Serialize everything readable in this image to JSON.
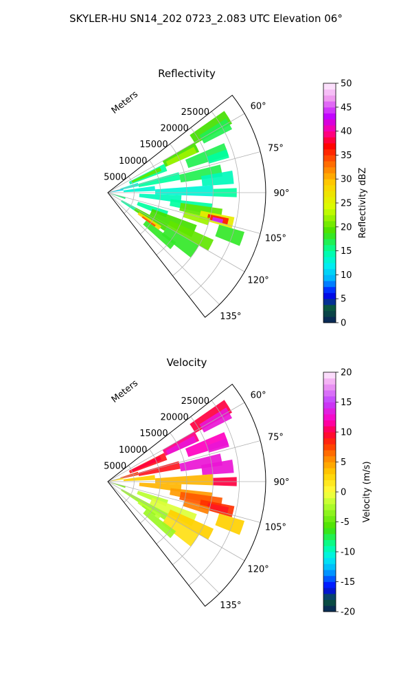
{
  "figure": {
    "title": "SKYLER-HU  SN14_202  0723_2.083 UTC Elevation 06°"
  },
  "chart_data": [
    {
      "type": "heatmap",
      "title": "Reflectivity",
      "radial_label": "Meters",
      "radial_ticks": [
        5000,
        10000,
        15000,
        20000,
        25000
      ],
      "rlim": [
        0,
        30000
      ],
      "azimuth_ticks": [
        "60°",
        "75°",
        "90°",
        "105°",
        "120°",
        "135°"
      ],
      "azimuth_tick_values": [
        60,
        75,
        90,
        105,
        120,
        135
      ],
      "azimuth_range": [
        52,
        142
      ],
      "grid": true,
      "colorbar": {
        "label": "Reflectivity dBZ",
        "min": 0,
        "max": 50,
        "ticks": [
          0,
          5,
          10,
          15,
          20,
          25,
          30,
          35,
          40,
          45,
          50
        ],
        "tick_labels": [
          "0",
          "5",
          "10",
          "15",
          "20",
          "25",
          "30",
          "35",
          "40",
          "45",
          "50"
        ],
        "stops": [
          [
            0,
            "#0a1f5c"
          ],
          [
            3,
            "#0a5a3a"
          ],
          [
            6,
            "#0000ff"
          ],
          [
            9,
            "#00b0ff"
          ],
          [
            12,
            "#00f0f0"
          ],
          [
            15,
            "#00ffa0"
          ],
          [
            19,
            "#44e000"
          ],
          [
            24,
            "#d8ff00"
          ],
          [
            29,
            "#ffd000"
          ],
          [
            33,
            "#ff7000"
          ],
          [
            37,
            "#ff0000"
          ],
          [
            40,
            "#ff00a0"
          ],
          [
            43,
            "#c000ff"
          ],
          [
            47,
            "#f0a0f0"
          ],
          [
            50,
            "#fff0ff"
          ]
        ]
      },
      "cells": [
        [
          55,
          61,
          19000,
          27000,
          19
        ],
        [
          58,
          63,
          20500,
          26500,
          17
        ],
        [
          60,
          66,
          12000,
          19000,
          19
        ],
        [
          62,
          66,
          12500,
          18500,
          22
        ],
        [
          63,
          70,
          4500,
          12000,
          15
        ],
        [
          64,
          68,
          5000,
          11000,
          20
        ],
        [
          67,
          73,
          16000,
          24000,
          17
        ],
        [
          70,
          74,
          20000,
          24000,
          15
        ],
        [
          72,
          78,
          2500,
          6000,
          13
        ],
        [
          74,
          80,
          6000,
          14000,
          15
        ],
        [
          76,
          82,
          14000,
          22000,
          17
        ],
        [
          80,
          86,
          18000,
          24000,
          14
        ],
        [
          82,
          88,
          3000,
          9000,
          13
        ],
        [
          86,
          92,
          9000,
          20000,
          13
        ],
        [
          88,
          92,
          20000,
          24500,
          15
        ],
        [
          92,
          98,
          6000,
          14000,
          14
        ],
        [
          96,
          102,
          12000,
          20000,
          15
        ],
        [
          98,
          104,
          14000,
          22000,
          20
        ],
        [
          101,
          106,
          18000,
          24500,
          26
        ],
        [
          102,
          105,
          19500,
          23500,
          36
        ],
        [
          103,
          105,
          20500,
          22500,
          44
        ],
        [
          104,
          108,
          15000,
          20000,
          22
        ],
        [
          106,
          112,
          22000,
          27000,
          18
        ],
        [
          107,
          113,
          6000,
          12000,
          15
        ],
        [
          110,
          118,
          9000,
          18000,
          19
        ],
        [
          114,
          120,
          13000,
          22000,
          20
        ],
        [
          118,
          124,
          6000,
          13000,
          19
        ],
        [
          120,
          128,
          13000,
          20000,
          18
        ],
        [
          122,
          126,
          7000,
          12000,
          28
        ],
        [
          124,
          126,
          8000,
          11000,
          34
        ],
        [
          126,
          132,
          9000,
          16000,
          18
        ],
        [
          76,
          82,
          400,
          3000,
          11
        ],
        [
          104,
          110,
          800,
          3500,
          16
        ],
        [
          118,
          124,
          3000,
          6000,
          15
        ]
      ]
    },
    {
      "type": "heatmap",
      "title": "Velocity",
      "radial_label": "Meters",
      "radial_ticks": [
        5000,
        10000,
        15000,
        20000,
        25000
      ],
      "rlim": [
        0,
        30000
      ],
      "azimuth_ticks": [
        "60°",
        "75°",
        "90°",
        "105°",
        "120°",
        "135°"
      ],
      "azimuth_tick_values": [
        60,
        75,
        90,
        105,
        120,
        135
      ],
      "azimuth_range": [
        52,
        142
      ],
      "grid": true,
      "colorbar": {
        "label": "Velocity (m/s)",
        "min": -20,
        "max": 20,
        "ticks": [
          -20,
          -15,
          -10,
          -5,
          0,
          5,
          10,
          15,
          20
        ],
        "tick_labels": [
          "-20",
          "-15",
          "-10",
          "-5",
          "0",
          "5",
          "10",
          "15",
          "20"
        ],
        "stops": [
          [
            -20,
            "#0a1f5c"
          ],
          [
            -18,
            "#0a5a3a"
          ],
          [
            -16,
            "#0000ff"
          ],
          [
            -13,
            "#00b0ff"
          ],
          [
            -11,
            "#00f0f0"
          ],
          [
            -9,
            "#00ffa0"
          ],
          [
            -6,
            "#44e000"
          ],
          [
            -2,
            "#b8ff30"
          ],
          [
            0,
            "#ffff40"
          ],
          [
            3,
            "#ffd000"
          ],
          [
            6,
            "#ff8000"
          ],
          [
            8,
            "#ff3000"
          ],
          [
            10,
            "#ff0040"
          ],
          [
            12,
            "#ff00c0"
          ],
          [
            15,
            "#c040ff"
          ],
          [
            18,
            "#f0a0f0"
          ],
          [
            20,
            "#fff0ff"
          ]
        ]
      },
      "cells": [
        [
          55,
          61,
          19000,
          27000,
          10
        ],
        [
          58,
          63,
          20500,
          26500,
          13
        ],
        [
          60,
          66,
          12000,
          19000,
          11
        ],
        [
          62,
          66,
          12500,
          18500,
          13
        ],
        [
          63,
          70,
          4500,
          12000,
          9
        ],
        [
          64,
          68,
          5000,
          11000,
          10
        ],
        [
          67,
          73,
          16000,
          24000,
          12
        ],
        [
          70,
          74,
          20000,
          24000,
          13
        ],
        [
          72,
          78,
          2500,
          6000,
          8
        ],
        [
          74,
          80,
          6000,
          14000,
          9
        ],
        [
          76,
          82,
          14000,
          22000,
          13
        ],
        [
          80,
          86,
          18000,
          24000,
          13
        ],
        [
          82,
          88,
          3000,
          9000,
          3
        ],
        [
          86,
          92,
          9000,
          20000,
          4
        ],
        [
          88,
          92,
          20000,
          24500,
          10
        ],
        [
          92,
          98,
          6000,
          14000,
          4
        ],
        [
          96,
          102,
          12000,
          20000,
          5
        ],
        [
          98,
          104,
          14000,
          22000,
          7
        ],
        [
          101,
          106,
          18000,
          24500,
          8
        ],
        [
          102,
          105,
          19500,
          23500,
          9
        ],
        [
          103,
          105,
          20500,
          22500,
          9
        ],
        [
          104,
          108,
          15000,
          20000,
          6
        ],
        [
          106,
          112,
          22000,
          27000,
          3
        ],
        [
          107,
          113,
          6000,
          12000,
          -2
        ],
        [
          110,
          118,
          9000,
          18000,
          -1
        ],
        [
          114,
          120,
          13000,
          22000,
          3
        ],
        [
          118,
          124,
          6000,
          13000,
          -3
        ],
        [
          120,
          128,
          13000,
          20000,
          2
        ],
        [
          122,
          126,
          7000,
          12000,
          -2
        ],
        [
          124,
          126,
          8000,
          11000,
          -3
        ],
        [
          126,
          132,
          9000,
          16000,
          -3
        ],
        [
          76,
          82,
          400,
          3000,
          2
        ],
        [
          104,
          110,
          800,
          3500,
          -4
        ],
        [
          118,
          124,
          3000,
          6000,
          -3
        ]
      ]
    }
  ]
}
